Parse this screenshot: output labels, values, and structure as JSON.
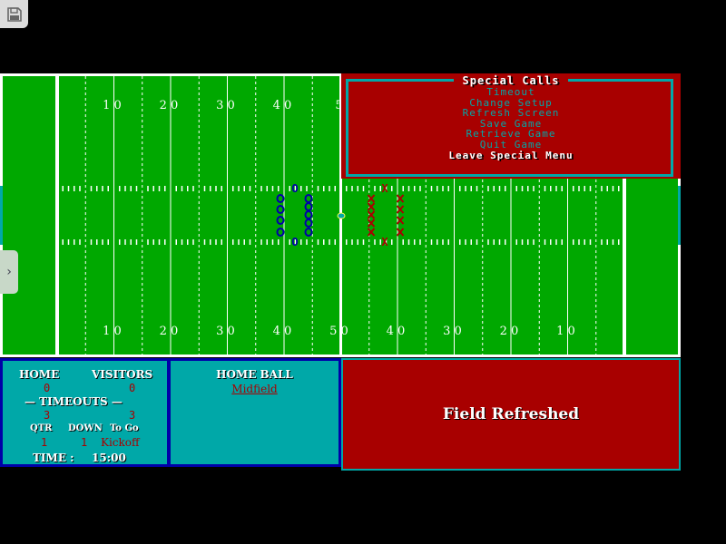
{
  "colors": {
    "field": "#00a800",
    "menu_bg": "#a80000",
    "accent": "#00a8a8",
    "home_team": "#0000a8",
    "visitor_team": "#a80000"
  },
  "toolbar": {
    "save_icon": "floppy-disk-icon",
    "side_tab_icon": "chevron-right-icon"
  },
  "field": {
    "top_numbers": [
      "1 0",
      "2 0",
      "3 0",
      "4 0",
      "5"
    ],
    "bottom_numbers": [
      "1 0",
      "2 0",
      "3 0",
      "4 0",
      "5 0",
      "4 0",
      "3 0",
      "2 0",
      "1 0"
    ],
    "home_marker": "O",
    "visitor_marker": "X"
  },
  "menu": {
    "title": "Special Calls",
    "items": [
      "Timeout",
      "Change Setup",
      "Refresh Screen",
      "Save Game",
      "Retrieve Game",
      "Quit Game",
      "Leave Special Menu"
    ]
  },
  "scoreboard": {
    "home_label": "HOME",
    "visitors_label": "VISITORS",
    "home_score": "0",
    "visitors_score": "0",
    "timeouts_label": "— TIMEOUTS —",
    "home_timeouts": "3",
    "visitors_timeouts": "3",
    "qtr_label": "QTR",
    "down_label": "DOWN",
    "togo_label": "To Go",
    "qtr": "1",
    "down": "1",
    "togo": "Kickoff",
    "time_label": "TIME :",
    "time": "15:00"
  },
  "possession": {
    "label": "HOME BALL",
    "position": "Midfield"
  },
  "message": "Field Refreshed"
}
